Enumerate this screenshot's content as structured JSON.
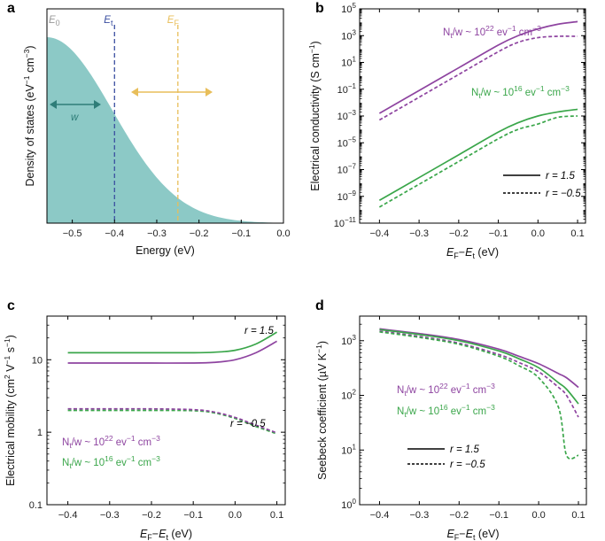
{
  "colors": {
    "purple": "#8e44a0",
    "green": "#3aa64a",
    "fill_teal": "#8cc9c6",
    "arrow_teal": "#2e7d78",
    "et_line": "#3a4ea0",
    "ef_line": "#e8be5a",
    "e0_gray": "#999999"
  },
  "chart_data": [
    {
      "panel": "a",
      "type": "area",
      "xlabel": "Energy (eV)",
      "ylabel": "Density of states (eV⁻¹ cm⁻³)",
      "xlim": [
        -0.56,
        0.0
      ],
      "xticks": [
        "−0.5",
        "−0.4",
        "−0.3",
        "−0.2",
        "−0.1",
        "0.0"
      ],
      "xtick_values": [
        -0.5,
        -0.4,
        -0.3,
        -0.2,
        -0.1,
        0.0
      ],
      "gaussian": {
        "center": -0.56,
        "sigma": 0.155
      },
      "markers": [
        {
          "label": "E",
          "sub": "0",
          "x": -0.56
        },
        {
          "label": "E",
          "sub": "t",
          "x": -0.4
        },
        {
          "label": "E",
          "sub": "F",
          "x": -0.25
        }
      ],
      "width_label": "w"
    },
    {
      "panel": "b",
      "type": "line",
      "xlabel": "E_F−E_t (eV)",
      "ylabel": "Electrical conductivity (S cm⁻¹)",
      "yscale": "log",
      "xlim": [
        -0.45,
        0.12
      ],
      "ylim_exp": [
        -11,
        5
      ],
      "xticks": [
        "−0.4",
        "−0.3",
        "−0.2",
        "−0.1",
        "0.0",
        "0.1"
      ],
      "xtick_values": [
        -0.4,
        -0.3,
        -0.2,
        -0.1,
        0.0,
        0.1
      ],
      "yticks_exp": [
        -11,
        -9,
        -7,
        -5,
        -3,
        -1,
        1,
        3,
        5
      ],
      "x": [
        -0.4,
        -0.3,
        -0.2,
        -0.1,
        -0.05,
        0.0,
        0.05,
        0.1
      ],
      "series": [
        {
          "name": "Nt/w 1e22, r = 1.5",
          "color": "purple",
          "dash": false,
          "log10_values": [
            -2.8,
            -1.1,
            0.6,
            2.3,
            3.0,
            3.5,
            3.85,
            4.05
          ]
        },
        {
          "name": "Nt/w 1e22, r = −0.5",
          "color": "purple",
          "dash": true,
          "log10_values": [
            -3.3,
            -1.6,
            0.1,
            1.8,
            2.5,
            2.85,
            2.95,
            2.95
          ]
        },
        {
          "name": "Nt/w 1e16, r = 1.5",
          "color": "green",
          "dash": false,
          "log10_values": [
            -9.3,
            -7.6,
            -5.9,
            -4.2,
            -3.5,
            -3.0,
            -2.7,
            -2.5
          ]
        },
        {
          "name": "Nt/w 1e16, r = −0.5",
          "color": "green",
          "dash": true,
          "log10_values": [
            -9.8,
            -8.1,
            -6.4,
            -4.7,
            -4.0,
            -3.6,
            -3.1,
            -3.0
          ]
        }
      ],
      "annotations": [
        {
          "text_pre": "N",
          "sub": "t",
          "text_mid": "/w ~ 10",
          "sup": "22",
          "text_post": " ev",
          "sup2": "−1",
          "text_end": " cm",
          "sup3": "−3",
          "color": "purple"
        },
        {
          "text_pre": "N",
          "sub": "t",
          "text_mid": "/w ~ 10",
          "sup": "16",
          "text_post": " ev",
          "sup2": "−1",
          "text_end": " cm",
          "sup3": "−3",
          "color": "green"
        }
      ],
      "legend": [
        {
          "label": "r = 1.5",
          "dash": false
        },
        {
          "label": "r = −0.5",
          "dash": true
        }
      ]
    },
    {
      "panel": "c",
      "type": "line",
      "xlabel": "E_F−E_t (eV)",
      "ylabel": "Electrical mobility (cm² V⁻¹ s⁻¹)",
      "yscale": "log",
      "xlim": [
        -0.45,
        0.12
      ],
      "ylim": [
        0.1,
        40
      ],
      "xticks": [
        "−0.4",
        "−0.3",
        "−0.2",
        "−0.1",
        "0.0",
        "0.1"
      ],
      "xtick_values": [
        -0.4,
        -0.3,
        -0.2,
        -0.1,
        0.0,
        0.1
      ],
      "yticks": [
        "0.1",
        "1",
        "10"
      ],
      "ytick_values": [
        0.1,
        1,
        10
      ],
      "x": [
        -0.4,
        -0.3,
        -0.2,
        -0.1,
        -0.05,
        0.0,
        0.05,
        0.1
      ],
      "series": [
        {
          "name": "green r = 1.5",
          "color": "green",
          "dash": false,
          "values": [
            12.5,
            12.5,
            12.5,
            12.5,
            12.7,
            13.5,
            16.5,
            24
          ]
        },
        {
          "name": "purple r = 1.5",
          "color": "purple",
          "dash": false,
          "values": [
            9.0,
            9.0,
            9.0,
            9.0,
            9.2,
            10.0,
            12.5,
            18
          ]
        },
        {
          "name": "green r = −0.5",
          "color": "green",
          "dash": true,
          "values": [
            2.0,
            2.0,
            2.0,
            1.98,
            1.85,
            1.55,
            1.2,
            0.95
          ]
        },
        {
          "name": "purple r = −0.5",
          "color": "purple",
          "dash": true,
          "values": [
            2.1,
            2.1,
            2.1,
            2.05,
            1.9,
            1.6,
            1.25,
            0.98
          ]
        }
      ],
      "r_labels": [
        "r = 1.5",
        "r = −0.5"
      ],
      "annotations": [
        {
          "text_pre": "N",
          "sub": "t",
          "text_mid": "/w ~ 10",
          "sup": "22",
          "text_post": " ev",
          "sup2": "−1",
          "text_end": " cm",
          "sup3": "−3",
          "color": "purple"
        },
        {
          "text_pre": "N",
          "sub": "t",
          "text_mid": "/w ~ 10",
          "sup": "16",
          "text_post": " ev",
          "sup2": "−1",
          "text_end": " cm",
          "sup3": "−3",
          "color": "green"
        }
      ]
    },
    {
      "panel": "d",
      "type": "line",
      "xlabel": "E_F−E_t (eV)",
      "ylabel": "Seebeck coefficient (µV K⁻¹)",
      "yscale": "log",
      "xlim": [
        -0.45,
        0.12
      ],
      "ylim_exp": [
        0,
        3.45
      ],
      "xticks": [
        "−0.4",
        "−0.3",
        "−0.2",
        "−0.1",
        "0.0",
        "0.1"
      ],
      "xtick_values": [
        -0.4,
        -0.3,
        -0.2,
        -0.1,
        0.0,
        0.1
      ],
      "yticks_exp": [
        0,
        1,
        2,
        3
      ],
      "x": [
        -0.4,
        -0.3,
        -0.2,
        -0.1,
        -0.05,
        0.0,
        0.05,
        0.07,
        0.1
      ],
      "series": [
        {
          "name": "purple r = 1.5",
          "color": "purple",
          "dash": false,
          "values": [
            1650,
            1350,
            1050,
            700,
            520,
            380,
            250,
            210,
            140
          ]
        },
        {
          "name": "green r = 1.5",
          "color": "green",
          "dash": false,
          "values": [
            1600,
            1300,
            1000,
            650,
            470,
            320,
            170,
            130,
            70
          ]
        },
        {
          "name": "purple r = −0.5",
          "color": "purple",
          "dash": true,
          "values": [
            1500,
            1200,
            900,
            560,
            400,
            270,
            140,
            100,
            40
          ]
        },
        {
          "name": "green r = −0.5",
          "color": "green",
          "dash": true,
          "values": [
            1450,
            1150,
            860,
            520,
            350,
            210,
            60,
            8,
            8
          ]
        }
      ],
      "annotations": [
        {
          "text_pre": "N",
          "sub": "t",
          "text_mid": "/w ~ 10",
          "sup": "22",
          "text_post": " ev",
          "sup2": "−1",
          "text_end": " cm",
          "sup3": "−3",
          "color": "purple"
        },
        {
          "text_pre": "N",
          "sub": "t",
          "text_mid": "/w ~ 10",
          "sup": "16",
          "text_post": " ev",
          "sup2": "−1",
          "text_end": " cm",
          "sup3": "−3",
          "color": "green"
        }
      ],
      "legend": [
        {
          "label": "r = 1.5",
          "dash": false
        },
        {
          "label": "r = −0.5",
          "dash": true
        }
      ]
    }
  ],
  "panel_labels": [
    "a",
    "b",
    "c",
    "d"
  ]
}
